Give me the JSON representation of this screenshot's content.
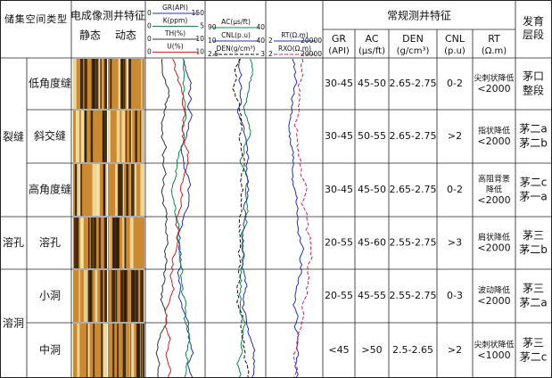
{
  "header": {
    "type": "储集空间类型",
    "imaging": {
      "title": "电成像测井特征",
      "static": "静态",
      "dynamic": "动态"
    },
    "conventional": "常规测井特征",
    "layer": "发育层段",
    "columns": [
      {
        "name": "GR",
        "unit": "(API)"
      },
      {
        "name": "AC",
        "unit": "(μs/ft)"
      },
      {
        "name": "DEN",
        "unit": "(g/cm³)"
      },
      {
        "name": "CNL",
        "unit": "(p.u)"
      },
      {
        "name": "RT",
        "unit": "(Ω.m)"
      }
    ]
  },
  "tracks": [
    [
      {
        "name": "GR(API)",
        "left": "0",
        "right": "150",
        "color": "#2233aa"
      },
      {
        "name": "K(ppm)",
        "left": "0",
        "right": "5",
        "color": "#11884a"
      },
      {
        "name": "TH(%)",
        "left": "0",
        "right": "10",
        "color": "#333333"
      },
      {
        "name": "U(%)",
        "left": "0",
        "right": "10",
        "color": "#cc2222"
      }
    ],
    [
      {
        "name": "AC(μs/ft)",
        "left": "90",
        "right": "40",
        "color": "#11884a"
      },
      {
        "name": "CNL(p.u)",
        "left": "10",
        "right": "40",
        "color": "#2233aa"
      },
      {
        "name": "DEN(g/cm³)",
        "left": "2.5",
        "right": "3",
        "color": "#111111"
      }
    ],
    [
      {
        "name": "RT(Ω.m)",
        "left": "2",
        "right": "20000",
        "color": "#2233aa"
      },
      {
        "name": "RXO(Ω.m)",
        "left": "2",
        "right": "20000",
        "color": "#cc2266"
      }
    ]
  ],
  "groups": [
    {
      "name": "裂缝",
      "rows": [
        {
          "type": "低角度缝",
          "cells": [
            "30-45",
            "45-50",
            "2.65-2.75",
            "0-2"
          ],
          "rt": [
            "尖刺状降低",
            "<2000"
          ],
          "layer": [
            "茅口",
            "整段"
          ]
        },
        {
          "type": "斜交缝",
          "cells": [
            "30-45",
            "50-55",
            "2.65-2.75",
            ">2"
          ],
          "rt": [
            "指状降低",
            "<2000"
          ],
          "layer": [
            "茅二a",
            "茅二b"
          ]
        },
        {
          "type": "高角度缝",
          "cells": [
            "30-45",
            "45-50",
            "2.65-2.75",
            "0-2"
          ],
          "rt": [
            "高阻背景",
            "降低",
            "<2000"
          ],
          "layer": [
            "茅二c",
            "茅一a"
          ]
        }
      ]
    },
    {
      "name": "溶孔",
      "rows": [
        {
          "type": "溶孔",
          "cells": [
            "20-55",
            "45-60",
            "2.55-2.75",
            ">3"
          ],
          "rt": [
            "肩状降低",
            "<2000"
          ],
          "layer": [
            "茅三",
            "茅二b"
          ]
        }
      ]
    },
    {
      "name": "溶洞",
      "rows": [
        {
          "type": "小洞",
          "cells": [
            "20-55",
            "45-55",
            "2.55-2.75",
            "0-3"
          ],
          "rt": [
            "波动降低",
            "<2000"
          ],
          "layer": [
            "茅三",
            "茅二a"
          ]
        },
        {
          "type": "中洞",
          "cells": [
            "<45",
            ">50",
            "2.5-2.65",
            ">2"
          ],
          "rt": [
            "尖刺状降低",
            "<1000"
          ],
          "layer": [
            "茅三",
            "茅二c"
          ]
        }
      ]
    }
  ]
}
